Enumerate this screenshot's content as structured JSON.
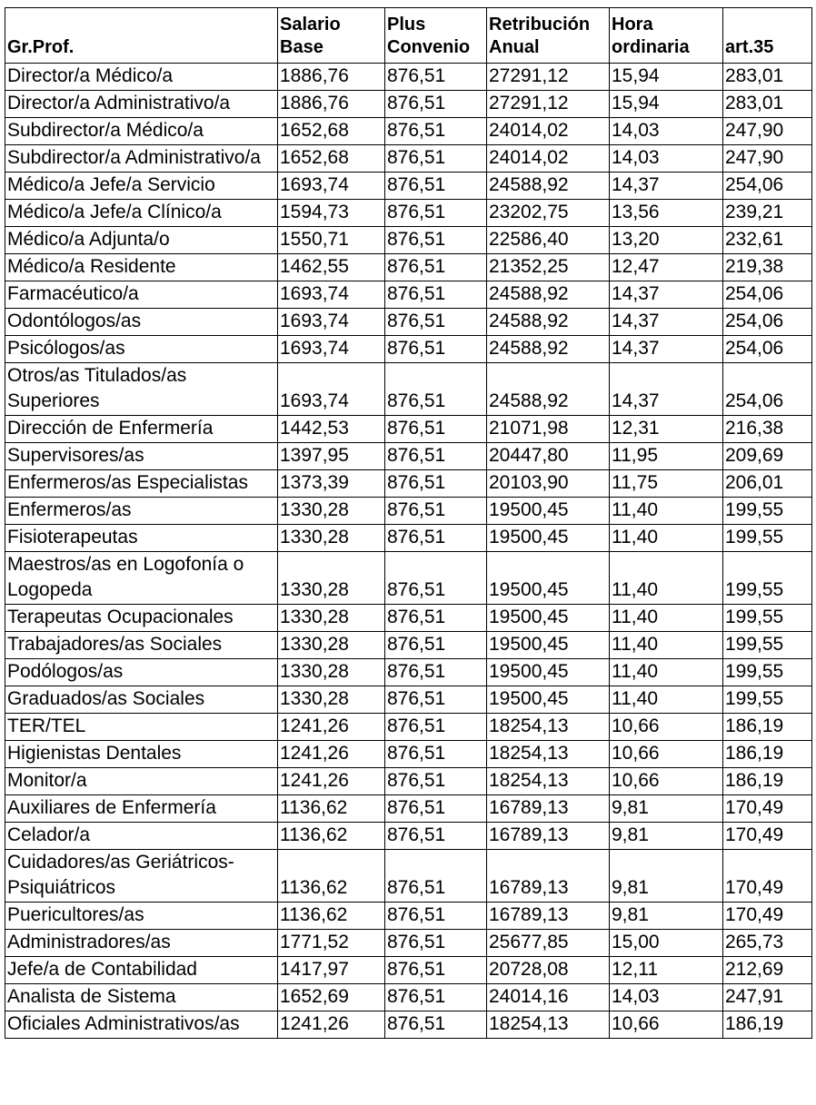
{
  "table": {
    "header": [
      "Gr.Prof.",
      "Salario Base",
      "Plus Convenio",
      "Retribución Anual",
      "Hora ordinaria",
      "art.35"
    ],
    "rows": [
      [
        "Director/a Médico/a",
        "1886,76",
        "876,51",
        "27291,12",
        "15,94",
        "283,01"
      ],
      [
        "Director/a Administrativo/a",
        "1886,76",
        "876,51",
        "27291,12",
        "15,94",
        "283,01"
      ],
      [
        "Subdirector/a Médico/a",
        "1652,68",
        "876,51",
        "24014,02",
        "14,03",
        "247,90"
      ],
      [
        "Subdirector/a Administrativo/a",
        "1652,68",
        "876,51",
        "24014,02",
        "14,03",
        "247,90"
      ],
      [
        "Médico/a Jefe/a Servicio",
        "1693,74",
        "876,51",
        "24588,92",
        "14,37",
        "254,06"
      ],
      [
        "Médico/a Jefe/a Clínico/a",
        "1594,73",
        "876,51",
        "23202,75",
        "13,56",
        "239,21"
      ],
      [
        "Médico/a Adjunta/o",
        "1550,71",
        "876,51",
        "22586,40",
        "13,20",
        "232,61"
      ],
      [
        "Médico/a Residente",
        "1462,55",
        "876,51",
        "21352,25",
        "12,47",
        "219,38"
      ],
      [
        "Farmacéutico/a",
        "1693,74",
        "876,51",
        "24588,92",
        "14,37",
        "254,06"
      ],
      [
        "Odontólogos/as",
        "1693,74",
        "876,51",
        "24588,92",
        "14,37",
        "254,06"
      ],
      [
        "Psicólogos/as",
        "1693,74",
        "876,51",
        "24588,92",
        "14,37",
        "254,06"
      ],
      [
        "Otros/as Titulados/as Superiores",
        "1693,74",
        "876,51",
        "24588,92",
        "14,37",
        "254,06"
      ],
      [
        "Dirección de Enfermería",
        "1442,53",
        "876,51",
        "21071,98",
        "12,31",
        "216,38"
      ],
      [
        "Supervisores/as",
        "1397,95",
        "876,51",
        "20447,80",
        "11,95",
        "209,69"
      ],
      [
        "Enfermeros/as Especialistas",
        "1373,39",
        "876,51",
        "20103,90",
        "11,75",
        "206,01"
      ],
      [
        "Enfermeros/as",
        "1330,28",
        "876,51",
        "19500,45",
        "11,40",
        "199,55"
      ],
      [
        "Fisioterapeutas",
        "1330,28",
        "876,51",
        "19500,45",
        "11,40",
        "199,55"
      ],
      [
        "Maestros/as en Logofonía o Logopeda",
        "1330,28",
        "876,51",
        "19500,45",
        "11,40",
        "199,55"
      ],
      [
        "Terapeutas Ocupacionales",
        "1330,28",
        "876,51",
        "19500,45",
        "11,40",
        "199,55"
      ],
      [
        "Trabajadores/as Sociales",
        "1330,28",
        "876,51",
        "19500,45",
        "11,40",
        "199,55"
      ],
      [
        "Podólogos/as",
        "1330,28",
        "876,51",
        "19500,45",
        "11,40",
        "199,55"
      ],
      [
        "Graduados/as Sociales",
        "1330,28",
        "876,51",
        "19500,45",
        "11,40",
        "199,55"
      ],
      [
        "TER/TEL",
        "1241,26",
        "876,51",
        "18254,13",
        "10,66",
        "186,19"
      ],
      [
        "Higienistas Dentales",
        "1241,26",
        "876,51",
        "18254,13",
        "10,66",
        "186,19"
      ],
      [
        "Monitor/a",
        "1241,26",
        "876,51",
        "18254,13",
        "10,66",
        "186,19"
      ],
      [
        "Auxiliares de Enfermería",
        "1136,62",
        "876,51",
        "16789,13",
        "9,81",
        "170,49"
      ],
      [
        "Celador/a",
        "1136,62",
        "876,51",
        "16789,13",
        "9,81",
        "170,49"
      ],
      [
        "Cuidadores/as Geriátricos-Psiquiátricos",
        "1136,62",
        "876,51",
        "16789,13",
        "9,81",
        "170,49"
      ],
      [
        "Puericultores/as",
        "1136,62",
        "876,51",
        "16789,13",
        "9,81",
        "170,49"
      ],
      [
        "Administradores/as",
        "1771,52",
        "876,51",
        "25677,85",
        "15,00",
        "265,73"
      ],
      [
        "Jefe/a de Contabilidad",
        "1417,97",
        "876,51",
        "20728,08",
        "12,11",
        "212,69"
      ],
      [
        "Analista de Sistema",
        "1652,69",
        "876,51",
        "24014,16",
        "14,03",
        "247,91"
      ],
      [
        "Oficiales Administrativos/as",
        "1241,26",
        "876,51",
        "18254,13",
        "10,66",
        "186,19"
      ]
    ]
  }
}
